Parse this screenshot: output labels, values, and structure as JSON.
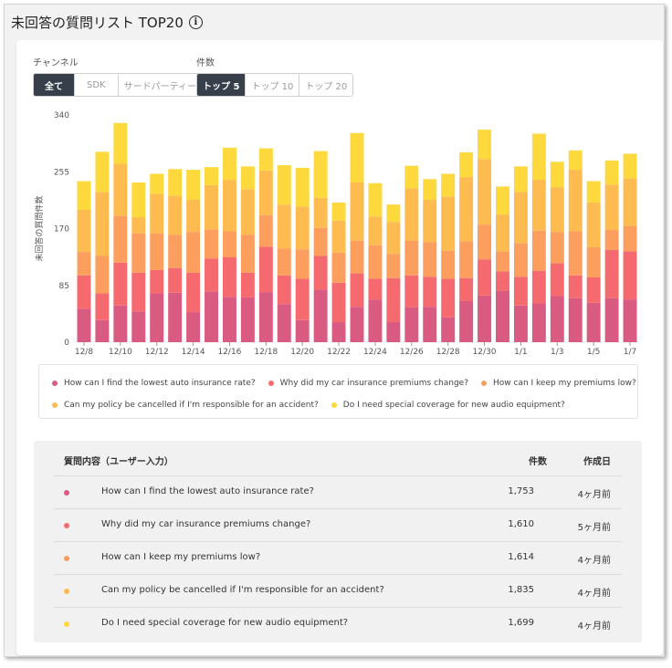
{
  "page": {
    "title": "未回答の質問リスト TOP20"
  },
  "filters": {
    "channel": {
      "label": "チャンネル",
      "options": [
        "全て",
        "SDK",
        "サードパーティー"
      ],
      "selected": "全て"
    },
    "count": {
      "label": "件数",
      "options": [
        "トップ 5",
        "トップ 10",
        "トップ 20"
      ],
      "selected": "トップ 5"
    }
  },
  "colors": [
    "#d95b81",
    "#f56a6f",
    "#fb9e5e",
    "#fdbb50",
    "#fdd93d"
  ],
  "chart_data": {
    "type": "bar",
    "stacked": true,
    "ylabel": "未回答の質問件数",
    "ylim": [
      0,
      340
    ],
    "yticks": [
      0,
      85,
      170,
      255,
      340
    ],
    "xticklabels": [
      "12/8",
      "12/10",
      "12/12",
      "12/14",
      "12/16",
      "12/18",
      "12/20",
      "12/22",
      "12/24",
      "12/26",
      "12/28",
      "12/30",
      "1/1",
      "1/3",
      "1/5",
      "1/7"
    ],
    "categories": [
      "12/8",
      "12/9",
      "12/10",
      "12/11",
      "12/12",
      "12/13",
      "12/14",
      "12/15",
      "12/16",
      "12/17",
      "12/18",
      "12/19",
      "12/20",
      "12/21",
      "12/22",
      "12/23",
      "12/24",
      "12/25",
      "12/26",
      "12/27",
      "12/28",
      "12/29",
      "12/30",
      "12/31",
      "1/1",
      "1/2",
      "1/3",
      "1/4",
      "1/5",
      "1/6",
      "1/7"
    ],
    "series": [
      {
        "name": "How can I find the lowest auto insurance rate?",
        "values": [
          50,
          33,
          55,
          46,
          73,
          74,
          45,
          76,
          68,
          67,
          75,
          57,
          33,
          79,
          30,
          53,
          64,
          30,
          52,
          53,
          37,
          62,
          70,
          77,
          55,
          58,
          69,
          66,
          59,
          66,
          64
        ]
      },
      {
        "name": "Why did my car insurance premiums change?",
        "values": [
          50,
          40,
          64,
          58,
          35,
          37,
          59,
          49,
          59,
          37,
          68,
          43,
          62,
          50,
          59,
          50,
          31,
          66,
          48,
          45,
          58,
          34,
          54,
          29,
          43,
          49,
          49,
          34,
          38,
          72,
          72
        ]
      },
      {
        "name": "How can I keep my premiums low?",
        "values": [
          35,
          56,
          70,
          59,
          55,
          50,
          61,
          44,
          39,
          57,
          47,
          40,
          44,
          42,
          45,
          49,
          50,
          36,
          52,
          52,
          42,
          55,
          52,
          30,
          50,
          60,
          47,
          66,
          45,
          30,
          38
        ]
      },
      {
        "name": "Can my policy be cancelled if I'm responsible for an accident?",
        "values": [
          63,
          96,
          78,
          24,
          59,
          58,
          48,
          66,
          77,
          68,
          67,
          66,
          64,
          45,
          48,
          87,
          43,
          48,
          78,
          63,
          81,
          96,
          98,
          55,
          77,
          76,
          67,
          92,
          67,
          68,
          71
        ]
      },
      {
        "name": "Do I need special coverage for new audio equipment?",
        "values": [
          43,
          60,
          61,
          52,
          30,
          40,
          45,
          27,
          48,
          34,
          33,
          59,
          58,
          70,
          27,
          74,
          50,
          26,
          34,
          31,
          34,
          37,
          44,
          42,
          38,
          69,
          38,
          29,
          32,
          36,
          37
        ]
      }
    ]
  },
  "table": {
    "headers": {
      "question": "質問内容（ユーザー入力）",
      "count": "件数",
      "created": "作成日"
    },
    "rows": [
      {
        "question": "How can I find the lowest auto insurance rate?",
        "count": "1,753",
        "created": "4ヶ月前"
      },
      {
        "question": "Why did my car insurance premiums change?",
        "count": "1,610",
        "created": "5ヶ月前"
      },
      {
        "question": "How can I keep my premiums low?",
        "count": "1,614",
        "created": "4ヶ月前"
      },
      {
        "question": "Can my policy be cancelled if I'm responsible for an accident?",
        "count": "1,835",
        "created": "4ヶ月前"
      },
      {
        "question": "Do I need special coverage for new audio equipment?",
        "count": "1,699",
        "created": "4ヶ月前"
      }
    ]
  }
}
